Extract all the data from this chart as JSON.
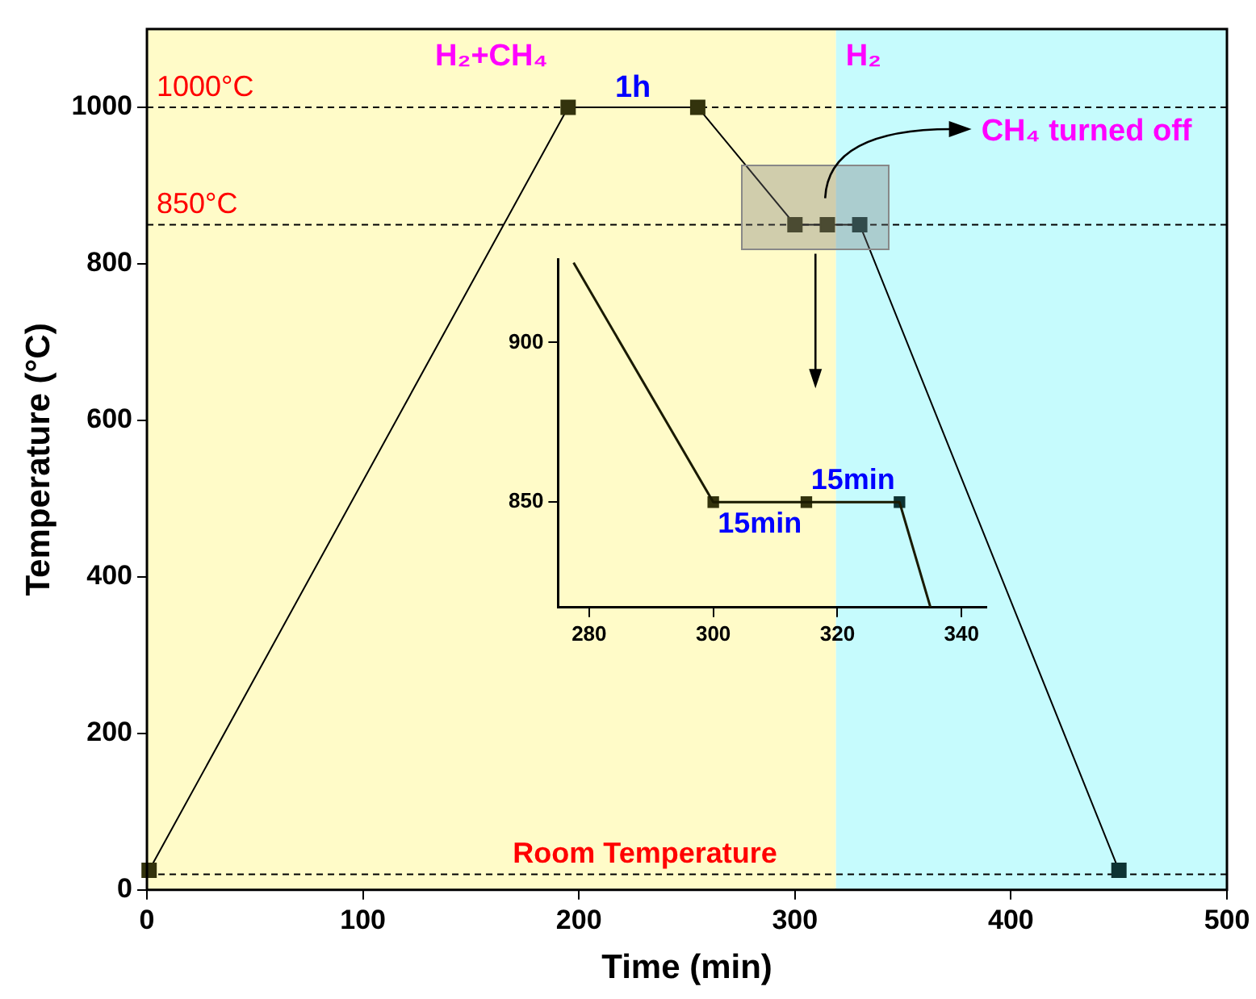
{
  "chart_data": [
    {
      "type": "line",
      "xlabel": "Time (min)",
      "ylabel": "Temperature (°C)",
      "xlim": [
        0,
        500
      ],
      "xticks": [
        0,
        100,
        200,
        300,
        400,
        500
      ],
      "ylim": [
        0,
        1100
      ],
      "yticks": [
        0,
        200,
        400,
        600,
        800,
        1000
      ],
      "grid": false,
      "legend": false,
      "marker": "square",
      "line_style": "solid",
      "series": [
        {
          "type": "line",
          "color": "#000000",
          "colors": [
            "#33330d",
            "#33330d",
            "#33330d",
            "#33330d",
            "#33330d",
            "#0d3333",
            "#0d3333"
          ],
          "x": [
            1,
            195,
            255,
            300,
            315,
            330,
            450
          ],
          "values": [
            25,
            1000,
            1000,
            850,
            850,
            850,
            25
          ]
        }
      ],
      "ref_lines": [
        {
          "axis": "y",
          "value": 1000,
          "label": "1000°C",
          "line_style": "dashed"
        },
        {
          "axis": "y",
          "value": 850,
          "label": "850°C",
          "line_style": "dashed"
        },
        {
          "axis": "y",
          "value": 20,
          "label": "Room Temperature",
          "line_style": "dashed"
        }
      ],
      "bands": [
        {
          "axis": "x",
          "from": 0,
          "to": 319,
          "label": "H₂+CH₄",
          "color": "#fffbc8"
        },
        {
          "axis": "x",
          "from": 319,
          "to": 500,
          "label": "H₂",
          "color": "#c6fbfd"
        }
      ],
      "annotations": [
        {
          "text": "1h",
          "x": 225,
          "y": 1000
        },
        "CH₄ turned off"
      ]
    },
    {
      "type": "line",
      "xlim": [
        275,
        344
      ],
      "xticks": [
        280,
        300,
        320,
        340
      ],
      "ylim": [
        817,
        926
      ],
      "yticks": [
        850,
        900
      ],
      "grid": false,
      "legend": false,
      "series": [
        {
          "type": "line",
          "marker": "none",
          "color": "#1a1a00",
          "x": [
            277.5,
            300,
            315,
            330,
            335
          ],
          "values": [
            925,
            850,
            850,
            850,
            817
          ]
        },
        {
          "type": "scatter",
          "marker": "square",
          "color": "#33330d",
          "colors": [
            "#33330d",
            "#33330d",
            "#0d3333"
          ],
          "x": [
            300,
            315,
            330
          ],
          "values": [
            850,
            850,
            850
          ]
        }
      ],
      "annotations": [
        {
          "text": "15min",
          "x": 307.5,
          "y": 850
        },
        {
          "text": "15min",
          "x": 322.5,
          "y": 850
        }
      ]
    }
  ]
}
